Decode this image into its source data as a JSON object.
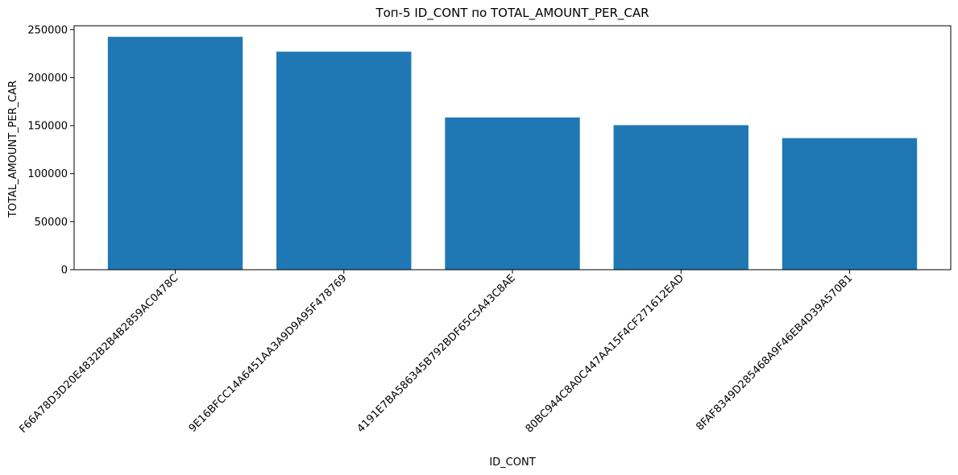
{
  "chart_data": {
    "type": "bar",
    "title": "Топ-5 ID_CONT по TOTAL_AMOUNT_PER_CAR",
    "xlabel": "ID_CONT",
    "ylabel": "TOTAL_AMOUNT_PER_CAR",
    "categories": [
      "F66A78D3D20E4832B2B4B2859AC0478C",
      "9E16BFCC14A6451AA3A9D9A95F478769",
      "4191E7BA586345B792BDF65C5A43C8AE",
      "80BC944C8A0C447AA15F4CF271612EAD",
      "8FAF8349D285468A9F46EB4D39A570B1"
    ],
    "values": [
      242500,
      227000,
      158500,
      150500,
      137000
    ],
    "ylim": [
      0,
      254000
    ],
    "yticks": [
      0,
      50000,
      100000,
      150000,
      200000,
      250000
    ],
    "grid": false,
    "bar_color": "#1f77b4",
    "xtick_rotation": 45
  }
}
